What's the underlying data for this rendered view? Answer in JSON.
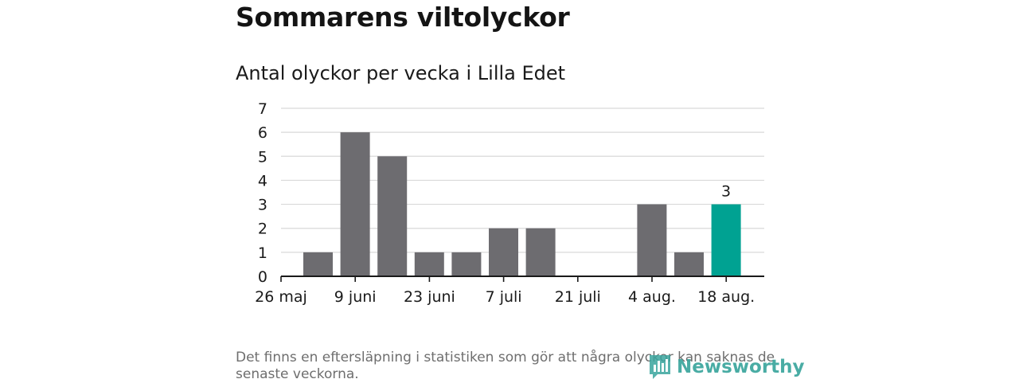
{
  "header": {
    "title": "Sommarens viltolyckor",
    "subtitle": "Antal olyckor per vecka i Lilla Edet"
  },
  "chart_data": {
    "type": "bar",
    "title": "Sommarens viltolyckor",
    "subtitle": "Antal olyckor per vecka i Lilla Edet",
    "xlabel": "",
    "ylabel": "",
    "ylim": [
      0,
      7
    ],
    "yticks": [
      0,
      1,
      2,
      3,
      4,
      5,
      6,
      7
    ],
    "grid": true,
    "legend": "none",
    "xtick_labels": [
      "26 maj",
      "9 juni",
      "23 juni",
      "7 juli",
      "21 juli",
      "4 aug.",
      "18 aug."
    ],
    "series": [
      {
        "values": [
          1,
          6,
          5,
          1,
          1,
          2,
          2,
          0,
          0,
          3,
          1,
          3
        ]
      }
    ],
    "highlight_index": 11,
    "data_labels": [
      {
        "index": 11,
        "text": "3"
      }
    ],
    "colors": {
      "bar": "#6d6c70",
      "highlight": "#00a292",
      "grid": "#d9d9d9",
      "axis": "#1a1a1a"
    }
  },
  "footnote": "Det finns en eftersläpning i statistiken som gör att några olyckor kan saknas de senaste veckorna.",
  "brand": {
    "name": "Newsworthy",
    "color": "#3aa59d",
    "icon": "bar-chart-icon"
  }
}
